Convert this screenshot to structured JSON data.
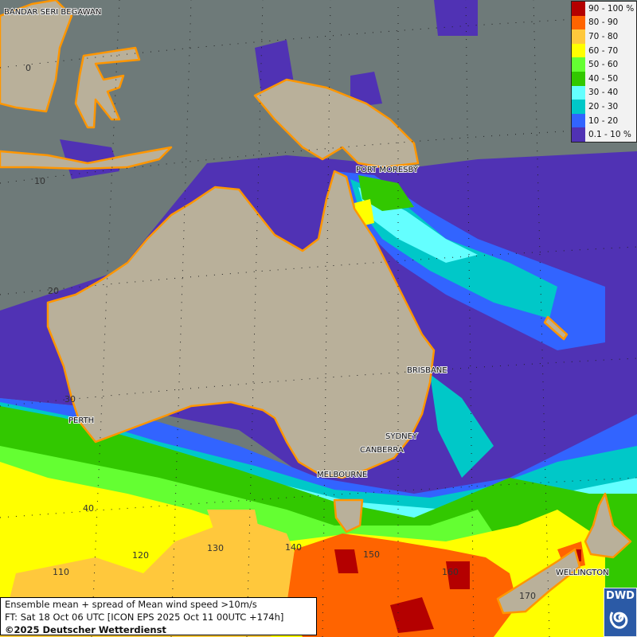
{
  "map": {
    "title": "Ensemble mean + spread of Mean wind speed >10m/s",
    "forecast_time": "FT: Sat 18 Oct 06 UTC [ICON EPS 2025 Oct 11 00UTC +174h]",
    "copyright": "©2025 Deutscher Wetterdienst",
    "logo_text": "DWD",
    "cities": [
      "BANDAR SERI BEGAWAN",
      "PORT MORESBY",
      "BRISBANE",
      "SYDNEY",
      "CANBERRA",
      "MELBOURNE",
      "PERTH",
      "WELLINGTON"
    ],
    "lat_labels": [
      "0",
      "10",
      "20",
      "30",
      "40"
    ],
    "lon_labels": [
      "110",
      "120",
      "130",
      "140",
      "150",
      "160",
      "170"
    ],
    "legend": [
      {
        "label": "90 - 100 %",
        "color": "#b40000"
      },
      {
        "label": "80 - 90",
        "color": "#ff6400"
      },
      {
        "label": "70 - 80",
        "color": "#ffc83c"
      },
      {
        "label": "60 - 70",
        "color": "#ffff00"
      },
      {
        "label": "50 - 60",
        "color": "#64ff32"
      },
      {
        "label": "40 - 50",
        "color": "#32c800"
      },
      {
        "label": "30 - 40",
        "color": "#64ffff"
      },
      {
        "label": "20 - 30",
        "color": "#00c8c8"
      },
      {
        "label": "10 - 20",
        "color": "#3264ff"
      },
      {
        "label": "0.1 - 10 %",
        "color": "#5032b4"
      }
    ],
    "ocean_color": "#6e7a79",
    "land_color": "#b9b09a",
    "coastline_color": "#ff9600"
  }
}
